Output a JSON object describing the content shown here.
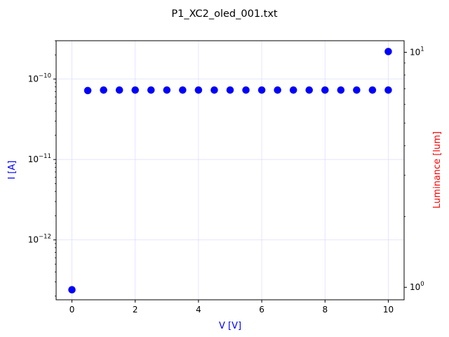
{
  "chart_data": {
    "type": "scatter",
    "title": "P1_XC2_oled_001.txt",
    "xlabel": "V [V]",
    "ylabel": "I [A]",
    "y2label": "Luminance [lum]",
    "xlim": [
      -0.5,
      10.5
    ],
    "ylim": [
      1.8e-13,
      3e-10
    ],
    "y2lim": [
      0.885,
      11.2
    ],
    "yscale": "log",
    "y2scale": "log",
    "grid": true,
    "x_ticks": [
      {
        "value": 0,
        "label": "0"
      },
      {
        "value": 2,
        "label": "2"
      },
      {
        "value": 4,
        "label": "4"
      },
      {
        "value": 6,
        "label": "6"
      },
      {
        "value": 8,
        "label": "8"
      },
      {
        "value": 10,
        "label": "10"
      }
    ],
    "y_ticks": [
      {
        "value": 1e-12,
        "base": "10",
        "exp": "−12"
      },
      {
        "value": 1e-11,
        "base": "10",
        "exp": "−11"
      },
      {
        "value": 1e-10,
        "base": "10",
        "exp": "−10"
      }
    ],
    "y2_ticks": [
      {
        "value": 1,
        "base": "10",
        "exp": "0"
      },
      {
        "value": 10,
        "base": "10",
        "exp": "1"
      }
    ],
    "colors": {
      "current": "#0000ff",
      "luminance": "#ff0000",
      "grid": "#ccccff"
    },
    "series": [
      {
        "axis": "y",
        "x": [
          0,
          0.5,
          1,
          1.5,
          2,
          2.5,
          3,
          3.5,
          4,
          4.5,
          5,
          5.5,
          6,
          6.5,
          7,
          7.5,
          8,
          8.5,
          9,
          9.5,
          10,
          10
        ],
        "y": [
          2.4e-13,
          7.2e-11,
          7.3e-11,
          7.3e-11,
          7.3e-11,
          7.3e-11,
          7.3e-11,
          7.3e-11,
          7.3e-11,
          7.3e-11,
          7.3e-11,
          7.3e-11,
          7.3e-11,
          7.3e-11,
          7.3e-11,
          7.3e-11,
          7.3e-11,
          7.3e-11,
          7.3e-11,
          7.3e-11,
          7.3e-11,
          2.2e-10
        ]
      }
    ]
  }
}
